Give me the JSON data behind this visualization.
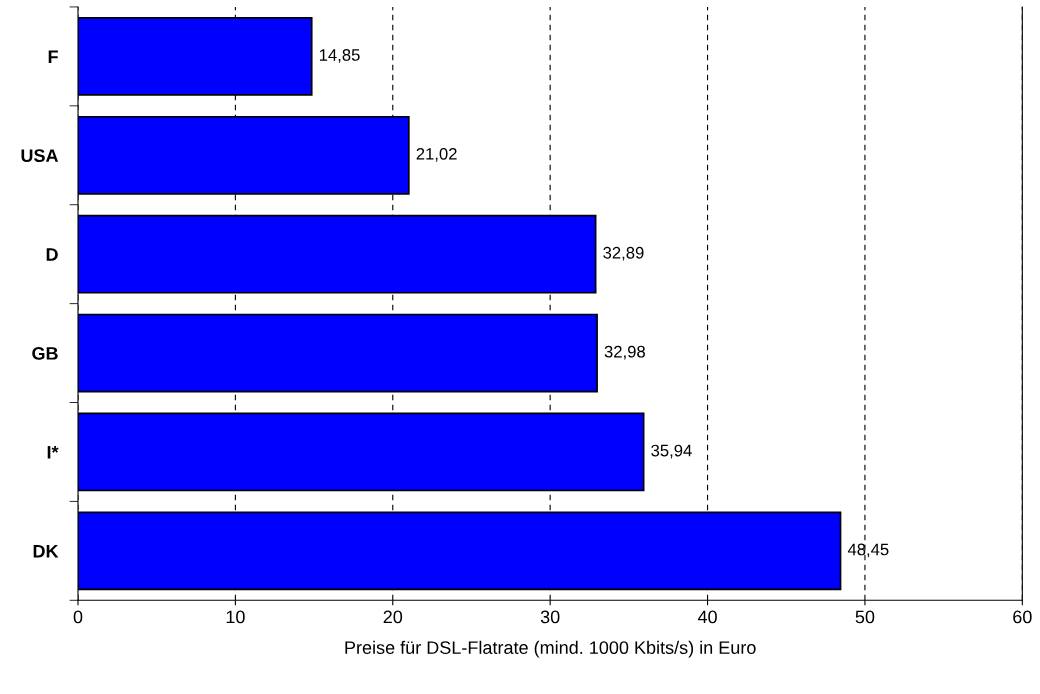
{
  "chart_data": {
    "type": "bar",
    "orientation": "horizontal",
    "xlabel": "Preise für DSL-Flatrate (mind. 1000 Kbits/s) in Euro",
    "categories": [
      "F",
      "USA",
      "D",
      "GB",
      "I*",
      "DK"
    ],
    "values": [
      14.85,
      21.02,
      32.89,
      32.98,
      35.94,
      48.45
    ],
    "value_labels": [
      "14,85",
      "21,02",
      "32,89",
      "32,98",
      "35,94",
      "48,45"
    ],
    "color": "#0000ff",
    "xlim": [
      0,
      60
    ],
    "xticks": [
      0,
      10,
      20,
      30,
      40,
      50,
      60
    ],
    "grid": "x"
  }
}
